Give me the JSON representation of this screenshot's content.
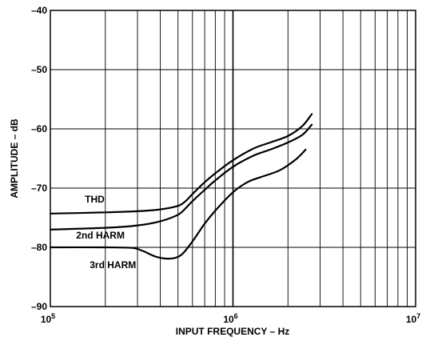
{
  "chart_data": {
    "type": "line",
    "title": "",
    "xlabel": "INPUT FREQUENCY – Hz",
    "ylabel": "AMPLITUDE – dB",
    "xscale": "log",
    "xlim": [
      100000,
      10000000
    ],
    "ylim": [
      -90,
      -40
    ],
    "grid": true,
    "x_ticks": [
      {
        "value": 100000,
        "base": "10",
        "exp": "5"
      },
      {
        "value": 1000000,
        "base": "10",
        "exp": "6"
      },
      {
        "value": 10000000,
        "base": "10",
        "exp": "7"
      }
    ],
    "y_ticks": [
      {
        "value": -40,
        "label": "–40"
      },
      {
        "value": -50,
        "label": "–50"
      },
      {
        "value": -60,
        "label": "–60"
      },
      {
        "value": -70,
        "label": "–70"
      },
      {
        "value": -80,
        "label": "–80"
      },
      {
        "value": -90,
        "label": "–90"
      }
    ],
    "series": [
      {
        "name": "THD",
        "x": [
          100000,
          200000,
          300000,
          400000,
          500000,
          550000,
          600000,
          700000,
          800000,
          1000000,
          1300000,
          1600000,
          2000000,
          2400000,
          2700000
        ],
        "y": [
          -74.3,
          -74.1,
          -73.9,
          -73.6,
          -73.0,
          -72.2,
          -71.0,
          -69.0,
          -67.5,
          -65.3,
          -63.3,
          -62.3,
          -61.2,
          -59.5,
          -57.5
        ]
      },
      {
        "name": "2nd HARM",
        "x": [
          100000,
          200000,
          300000,
          400000,
          500000,
          550000,
          600000,
          700000,
          800000,
          1000000,
          1300000,
          1600000,
          2000000,
          2400000,
          2700000
        ],
        "y": [
          -77.0,
          -76.7,
          -76.3,
          -75.6,
          -74.5,
          -73.4,
          -72.2,
          -70.3,
          -68.7,
          -66.4,
          -64.5,
          -63.5,
          -62.3,
          -61.0,
          -59.3
        ]
      },
      {
        "name": "3rd HARM",
        "x": [
          100000,
          200000,
          280000,
          320000,
          380000,
          450000,
          520000,
          600000,
          700000,
          800000,
          1000000,
          1200000,
          1400000,
          1800000,
          2200000,
          2500000
        ],
        "y": [
          -80.0,
          -80.0,
          -80.1,
          -80.6,
          -81.6,
          -81.9,
          -81.3,
          -79.0,
          -76.0,
          -73.8,
          -70.7,
          -69.0,
          -68.2,
          -67.0,
          -65.2,
          -63.5
        ]
      }
    ],
    "annotations": [
      {
        "text": "THD",
        "x": 175000,
        "y": -72.4
      },
      {
        "text": "2nd HARM",
        "x": 188000,
        "y": -78.5
      },
      {
        "text": "3rd HARM",
        "x": 220000,
        "y": -83.5
      }
    ]
  }
}
